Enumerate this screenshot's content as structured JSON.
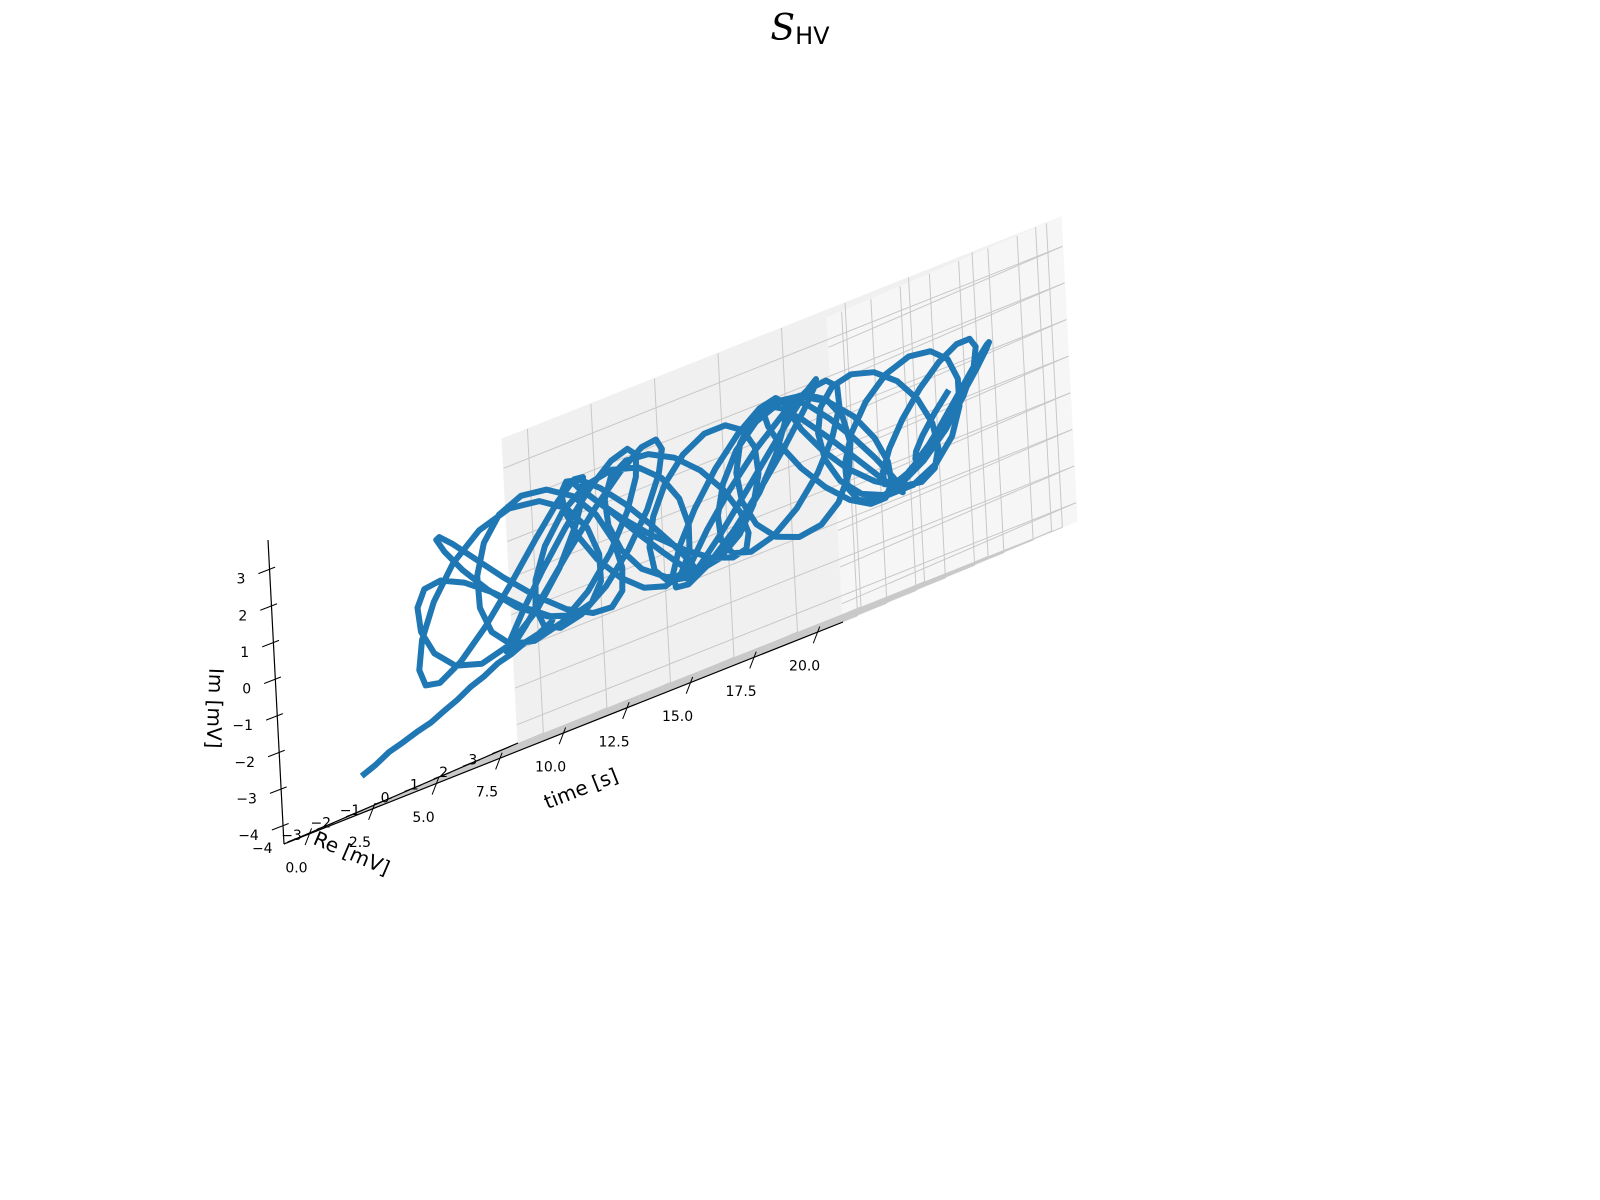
{
  "title": {
    "main": "S",
    "sub": "HV"
  },
  "chart_data": {
    "type": "line",
    "projection": "3d",
    "title": "S_HV",
    "xlabel": "time [s]",
    "ylabel": "Re [mV]",
    "zlabel": "Im [mV]",
    "xlim": [
      -1.0,
      21.0
    ],
    "ylim": [
      -4.5,
      3.5
    ],
    "zlim": [
      -4.5,
      3.8
    ],
    "xticks": [
      0.0,
      2.5,
      5.0,
      7.5,
      10.0,
      12.5,
      15.0,
      17.5,
      20.0
    ],
    "xtick_labels": [
      "0.0",
      "2.5",
      "5.0",
      "7.5",
      "10.0",
      "12.5",
      "15.0",
      "17.5",
      "20.0"
    ],
    "yticks": [
      -4,
      -3,
      -2,
      -1,
      0,
      1,
      2,
      3
    ],
    "ytick_labels": [
      "−4",
      "−3",
      "−2",
      "−1",
      "0",
      "1",
      "2",
      "3"
    ],
    "zticks": [
      -4,
      -3,
      -2,
      -1,
      0,
      1,
      2,
      3
    ],
    "ztick_labels": [
      "−4",
      "−3",
      "−2",
      "−1",
      "0",
      "1",
      "2",
      "3"
    ],
    "grid": true,
    "line_color": "#1f77b4",
    "series": [
      {
        "time_s": [
          0.0,
          0.06,
          0.12,
          0.18,
          0.24,
          0.3,
          0.36,
          0.42,
          0.48,
          0.54,
          0.6,
          0.66,
          0.72,
          0.78,
          0.84,
          0.9,
          0.96,
          1.02,
          1.08,
          1.14,
          1.2,
          1.26,
          1.32,
          1.38,
          1.44,
          1.5,
          1.56,
          1.62,
          1.68,
          1.74,
          1.8,
          1.86,
          1.92,
          1.98,
          2.04,
          2.1,
          2.16,
          2.22,
          2.28,
          2.34,
          2.4,
          2.46,
          2.52,
          2.58,
          2.64,
          2.7,
          2.76,
          2.82,
          2.88,
          2.94,
          3.0,
          3.06,
          3.12,
          3.18,
          3.24,
          3.3,
          3.36,
          3.42,
          3.48,
          3.54,
          3.6,
          3.66,
          3.72,
          3.78,
          3.84,
          3.9,
          3.96,
          4.02,
          4.08,
          4.14,
          4.2,
          4.26,
          4.32,
          4.38,
          4.44,
          4.5,
          4.56,
          4.62,
          4.68,
          4.74,
          4.8,
          4.86,
          4.92,
          4.98,
          5.04,
          5.1,
          5.16,
          5.22,
          5.28,
          5.34,
          5.4,
          5.46,
          5.52,
          5.58,
          5.64,
          5.7,
          5.76,
          5.82,
          5.88,
          5.94,
          6.0,
          6.06,
          6.12,
          6.18,
          6.24,
          6.3,
          6.36,
          6.42,
          6.48,
          6.54,
          6.6,
          6.66,
          6.72,
          6.78,
          6.84,
          6.9,
          6.96,
          7.02,
          7.08,
          7.14,
          7.2,
          7.26,
          7.32,
          7.38,
          7.44,
          7.5,
          7.56,
          7.62,
          7.68,
          7.74,
          7.8,
          7.86,
          7.92,
          7.98,
          8.04,
          8.1,
          8.16,
          8.22,
          8.28,
          8.34,
          8.4,
          8.46,
          8.52,
          8.58,
          8.64,
          8.7,
          8.76,
          8.82,
          8.88,
          8.94,
          9.0,
          9.06,
          9.12,
          9.18,
          9.24,
          9.3,
          9.36,
          9.42,
          9.48,
          9.54,
          9.6,
          9.66,
          9.72,
          9.78,
          9.84,
          9.9,
          9.96,
          10.02,
          10.08,
          10.14,
          10.2,
          10.26,
          10.32,
          10.38,
          10.44,
          10.5,
          10.56,
          10.62,
          10.68,
          10.74,
          10.8,
          10.86,
          10.92,
          10.98,
          11.04,
          11.1,
          11.16,
          11.22,
          11.28,
          11.34,
          11.4,
          11.46,
          11.52,
          11.58,
          11.64,
          11.7,
          11.76,
          11.82,
          11.88,
          11.94,
          12.0,
          12.06,
          12.12,
          12.18,
          12.24,
          12.3,
          12.36,
          12.42,
          12.48,
          12.54,
          12.6,
          12.66,
          12.72,
          12.78,
          12.84,
          12.9,
          12.96,
          13.02,
          13.08,
          13.14,
          13.2,
          13.26,
          13.32,
          13.38,
          13.44,
          13.5,
          13.56,
          13.62,
          13.68,
          13.74,
          13.8,
          13.86,
          13.92,
          13.98,
          14.04,
          14.1,
          14.16,
          14.22,
          14.28,
          14.34,
          14.4,
          14.46,
          14.52,
          14.58,
          14.64,
          14.7,
          14.76,
          14.82,
          14.88,
          14.94,
          15.0,
          15.06,
          15.12,
          15.18,
          15.24,
          15.3,
          15.36,
          15.42,
          15.48,
          15.54,
          15.6,
          15.66,
          15.72,
          15.78,
          15.84,
          15.9,
          15.96,
          16.02,
          16.08,
          16.14,
          16.2,
          16.26,
          16.32,
          16.38,
          16.44,
          16.5,
          16.56,
          16.62,
          16.68,
          16.74,
          16.8,
          16.86,
          16.92,
          16.98,
          17.04,
          17.1,
          17.16,
          17.22,
          17.28,
          17.34,
          17.4,
          17.46,
          17.52,
          17.58,
          17.64,
          17.7,
          17.76,
          17.82,
          17.88,
          17.94,
          18.0,
          18.06,
          18.12,
          18.18,
          18.24,
          18.3,
          18.36,
          18.42,
          18.48,
          18.54,
          18.6,
          18.66,
          18.72,
          18.78,
          18.84,
          18.9,
          18.96,
          19.02,
          19.08,
          19.14,
          19.2,
          19.26,
          19.32,
          19.38,
          19.44,
          19.5,
          19.56,
          19.62,
          19.68,
          19.74,
          19.8,
          19.86,
          19.92,
          19.98,
          20.04,
          20.1,
          20.16,
          20.22,
          20.28,
          20.34,
          20.4,
          20.46,
          20.52,
          20.58,
          20.64,
          20.7,
          20.76,
          20.82,
          20.88,
          20.94,
          21.0
        ],
        "re_mV": [
          -2.65,
          -2.22,
          -1.8,
          -1.37,
          -0.93,
          -0.5,
          -0.09,
          0.33,
          0.73,
          1.16,
          1.58,
          2.0,
          2.41,
          2.83,
          3.25,
          3.25,
          2.24,
          1.18,
          0.18,
          -0.66,
          -1.27,
          -1.58,
          -1.56,
          -1.2,
          -0.57,
          0.26,
          1.19,
          2.09,
          2.87,
          3.42,
          3.7,
          3.66,
          3.31,
          2.68,
          1.84,
          0.88,
          -0.13,
          -1.07,
          -1.85,
          -2.38,
          -2.62,
          -2.53,
          -2.12,
          -1.46,
          -0.58,
          0.41,
          1.38,
          2.22,
          2.83,
          3.13,
          3.09,
          2.69,
          2.0,
          1.08,
          0.04,
          -0.96,
          -1.83,
          -2.45,
          -2.76,
          -2.71,
          -2.32,
          -1.65,
          -0.78,
          0.21,
          1.16,
          1.99,
          2.58,
          2.9,
          2.89,
          2.58,
          2.0,
          1.21,
          0.29,
          -0.63,
          -1.45,
          -2.06,
          -2.39,
          -2.41,
          -2.11,
          -1.55,
          -0.79,
          0.1,
          0.97,
          1.74,
          2.32,
          2.62,
          2.61,
          2.28,
          1.66,
          0.84,
          -0.08,
          -0.98,
          -1.74,
          -2.26,
          -2.47,
          -2.35,
          -1.93,
          -1.26,
          -0.42,
          0.49,
          1.34,
          2.03,
          2.47,
          2.6,
          2.4,
          1.9,
          1.15,
          0.28,
          -0.63,
          -1.42,
          -2.01,
          -2.32,
          -2.32,
          -2.0,
          -1.42,
          -0.65,
          0.21,
          1.05,
          1.76,
          2.26,
          2.48,
          2.41,
          2.04,
          1.44,
          0.67,
          -0.15,
          -0.95,
          -1.61,
          -2.04,
          -2.2,
          -2.06,
          -1.65,
          -1.04,
          -0.3,
          0.46,
          1.13,
          1.6,
          1.79,
          1.65,
          1.21,
          0.53,
          -0.31,
          -1.16,
          -1.91,
          -2.42,
          -2.63,
          -2.51,
          -2.03,
          -1.28,
          -0.34,
          0.66,
          1.55,
          2.24,
          2.65,
          2.7,
          2.41,
          1.83,
          1.04,
          0.14,
          -0.78,
          -1.59,
          -2.17,
          -2.47,
          -2.44,
          -2.1,
          -1.51,
          -0.74,
          0.11,
          0.94,
          1.62,
          2.08,
          2.25,
          2.12,
          1.71,
          1.07,
          0.3,
          -0.5,
          -1.21,
          -1.71,
          -1.94,
          -1.86,
          -1.48,
          -0.85,
          -0.07,
          0.76,
          1.52,
          2.08,
          2.38,
          2.36,
          2.02,
          1.41,
          0.6,
          -0.28,
          -1.09,
          -1.71,
          -2.03,
          -2.01,
          -1.64,
          -0.98,
          -0.13,
          0.79,
          1.63,
          2.27,
          2.62,
          2.62,
          2.28,
          1.63,
          0.77,
          -0.18,
          -1.09,
          -1.85,
          -2.33,
          -2.49,
          -2.3,
          -1.8,
          -1.05,
          -0.16,
          0.76,
          1.57,
          2.17,
          2.48,
          2.47,
          2.13,
          1.52,
          0.71,
          -0.17,
          -1.0,
          -1.66,
          -2.08,
          -2.2,
          -2.03,
          -1.58,
          -0.92,
          -0.13,
          0.66,
          1.32,
          1.78,
          1.94,
          1.79,
          1.34,
          0.67,
          -0.14,
          -0.96,
          -1.66,
          -2.15,
          -2.34,
          -2.22,
          -1.8,
          -1.14,
          -0.31,
          0.57,
          1.37,
          1.98,
          2.33,
          2.37,
          2.09,
          1.53,
          0.78,
          -0.06,
          -0.89,
          -1.57,
          -2.03,
          -2.22,
          -2.1,
          -1.71,
          -1.09,
          -0.33,
          0.46,
          1.16,
          1.66,
          1.89,
          1.82,
          1.46,
          0.86,
          0.1,
          -0.7,
          -1.44,
          -1.98,
          -2.25,
          -2.23,
          -1.91,
          -1.33,
          -0.57,
          0.29,
          1.1,
          1.76,
          2.17,
          2.27,
          2.06,
          1.56,
          0.86,
          0.04,
          -0.78,
          -1.48,
          -1.96,
          -2.14,
          -2.01,
          -1.59,
          -0.94,
          -0.14,
          0.69,
          1.43,
          1.97,
          2.22,
          2.16,
          1.8,
          1.19,
          0.4,
          -0.45,
          -1.22,
          -1.81,
          -2.13,
          -2.14,
          -1.84,
          -1.29,
          -0.56,
          0.25,
          1.0,
          1.59,
          1.93,
          1.98,
          1.74,
          1.24,
          0.57,
          -0.17,
          -0.86,
          -1.4,
          -1.7,
          -1.73,
          -1.5,
          -1.05,
          -0.46,
          0.18,
          0.76,
          1.23,
          1.52,
          1.6,
          1.47,
          1.13,
          0.66,
          0.11,
          -0.43,
          -0.92,
          -1.28,
          -1.48,
          -1.5,
          -1.31,
          -0.94,
          -0.45,
          0.07
        ],
        "im_mV": [
          -3.56,
          -3.42,
          -3.23,
          -3.13,
          -3.01,
          -2.92,
          -2.76,
          -2.61,
          -2.42,
          -2.29,
          -2.1,
          -2.01,
          -1.86,
          -1.78,
          -1.6,
          -1.5,
          -0.9,
          -0.15,
          0.45,
          0.78,
          0.74,
          0.32,
          -0.36,
          -1.09,
          -1.66,
          -1.91,
          -1.72,
          -1.11,
          -0.24,
          0.7,
          1.47,
          1.92,
          1.96,
          1.57,
          0.84,
          -0.07,
          -0.95,
          -1.6,
          -1.92,
          -1.82,
          -1.34,
          -0.57,
          0.32,
          1.13,
          1.71,
          1.95,
          1.8,
          1.3,
          0.54,
          -0.3,
          -1.04,
          -1.51,
          -1.63,
          -1.36,
          -0.77,
          0.03,
          0.86,
          1.55,
          1.97,
          2.01,
          1.67,
          1.02,
          0.19,
          -0.67,
          -1.37,
          -1.78,
          -1.84,
          -1.52,
          -0.9,
          -0.06,
          0.82,
          1.58,
          2.06,
          2.19,
          1.94,
          1.36,
          0.56,
          -0.32,
          -1.1,
          -1.64,
          -1.83,
          -1.65,
          -1.12,
          -0.34,
          0.56,
          1.39,
          1.98,
          2.24,
          2.11,
          1.62,
          0.86,
          -0.02,
          -0.86,
          -1.48,
          -1.79,
          -1.73,
          -1.33,
          -0.64,
          0.21,
          1.06,
          1.74,
          2.14,
          2.18,
          1.86,
          1.23,
          0.41,
          -0.44,
          -1.16,
          -1.62,
          -1.74,
          -1.49,
          -0.93,
          -0.17,
          0.63,
          1.33,
          1.78,
          1.9,
          1.66,
          1.11,
          0.36,
          -0.45,
          -1.17,
          -1.66,
          -1.82,
          -1.61,
          -1.07,
          -0.31,
          0.54,
          1.32,
          1.88,
          2.13,
          2.02,
          1.57,
          0.87,
          0.04,
          -0.76,
          -1.39,
          -1.74,
          -1.76,
          -1.45,
          -0.86,
          -0.08,
          0.74,
          1.44,
          1.91,
          2.06,
          1.86,
          1.35,
          0.61,
          -0.22,
          -0.98,
          -1.54,
          -1.79,
          -1.71,
          -1.31,
          -0.66,
          0.13,
          0.92,
          1.56,
          1.96,
          2.04,
          1.79,
          1.25,
          0.51,
          -0.29,
          -1.02,
          -1.53,
          -1.75,
          -1.64,
          -1.22,
          -0.58,
          0.18,
          0.93,
          1.52,
          1.86,
          1.88,
          1.57,
          1.0,
          0.26,
          -0.52,
          -1.19,
          -1.63,
          -1.76,
          -1.55,
          -1.04,
          -0.31,
          0.51,
          1.25,
          1.79,
          2.03,
          1.94,
          1.52,
          0.84,
          0.01,
          -0.81,
          -1.47,
          -1.87,
          -1.93,
          -1.62,
          -1.01,
          -0.19,
          0.66,
          1.41,
          1.92,
          2.09,
          1.91,
          1.41,
          0.68,
          -0.15,
          -0.93,
          -1.5,
          -1.78,
          -1.72,
          -1.32,
          -0.66,
          0.13,
          0.91,
          1.54,
          1.91,
          1.96,
          1.68,
          1.12,
          0.38,
          -0.41,
          -1.11,
          -1.58,
          -1.74,
          -1.57,
          -1.09,
          -0.39,
          0.4,
          1.14,
          1.68,
          1.93,
          1.86,
          1.47,
          0.82,
          0.03,
          -0.76,
          -1.41,
          -1.81,
          -1.88,
          -1.61,
          -1.04,
          -0.27,
          0.56,
          1.3,
          1.82,
          2.03,
          1.89,
          1.43,
          0.73,
          -0.09,
          -0.87,
          -1.48,
          -1.81,
          -1.8,
          -1.45,
          -0.83,
          -0.04,
          0.77,
          1.46,
          1.9,
          2.02,
          1.79,
          1.26,
          0.51,
          -0.32,
          -1.07,
          -1.61,
          -1.84,
          -1.72,
          -1.28,
          -0.59,
          0.22,
          0.99,
          1.59,
          1.92,
          1.93,
          1.61,
          1.02,
          0.26,
          -0.53,
          -1.2,
          -1.64,
          -1.76,
          -1.54,
          -1.02,
          -0.3,
          0.5,
          1.22,
          1.73,
          1.94,
          1.83,
          1.41,
          0.75,
          -0.02,
          -0.77,
          -1.37,
          -1.7,
          -1.72,
          -1.42,
          -0.86,
          -0.14,
          0.61,
          1.25,
          1.66,
          1.77,
          1.56,
          1.06,
          0.38,
          -0.36,
          -1.02,
          -1.48,
          -1.67,
          -1.56,
          -1.17,
          -0.58,
          0.11,
          0.77,
          1.28,
          1.56,
          1.57,
          1.3,
          0.81,
          0.19,
          -0.44,
          -0.98,
          -1.33,
          -1.45,
          -1.3,
          -0.93,
          -0.41,
          0.16,
          0.69,
          1.08,
          1.27,
          1.23,
          0.98,
          0.57,
          0.08,
          -0.4,
          -0.78,
          -0.99,
          -0.99,
          -0.8,
          -0.45,
          0.0,
          0.47
        ]
      }
    ]
  }
}
